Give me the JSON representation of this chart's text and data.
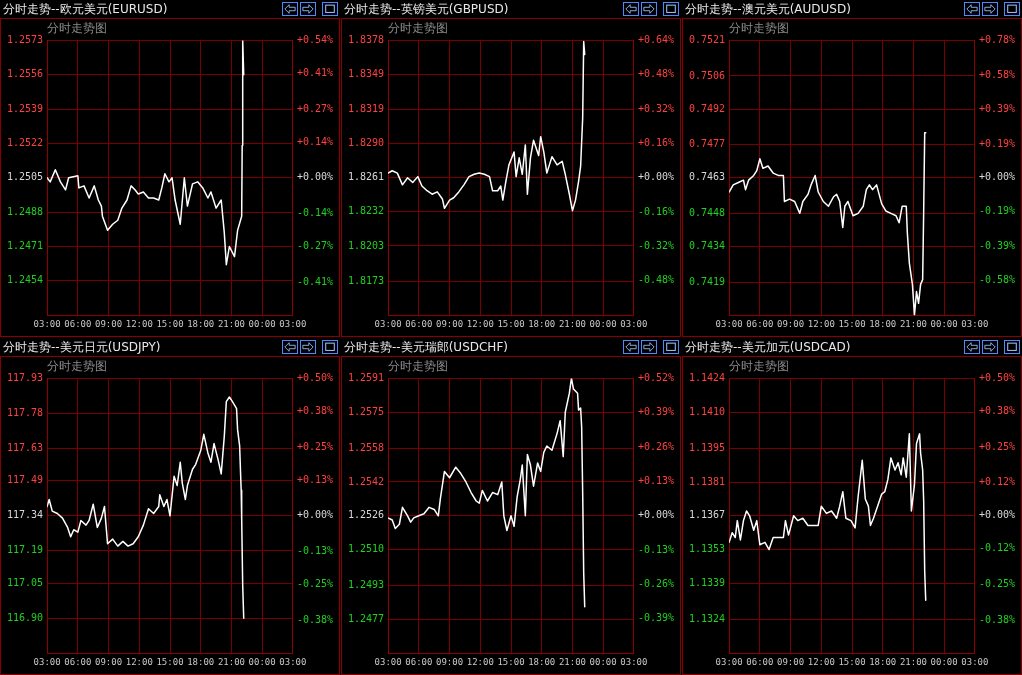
{
  "chart_data": [
    {
      "type": "line",
      "title": "分时走势--欧元美元(EURUSD)",
      "subtitle": "分时走势图",
      "color": "#ffffff",
      "grid": true,
      "x": [
        "--01-01T03:00",
        "--01-01T03:18",
        "--01-01T03:48",
        "--01-01T04:18",
        "--01-01T04:48",
        "--01-01T05:06",
        "--01-01T06:00",
        "--01-01T06:06",
        "--01-01T06:36",
        "--01-01T07:06",
        "--01-01T07:36",
        "--01-01T08:00",
        "--01-01T08:18",
        "--01-01T08:24",
        "--01-01T08:54",
        "--01-01T09:24",
        "--01-01T09:54",
        "--01-01T10:18",
        "--01-01T10:48",
        "--01-01T11:12",
        "--01-01T11:36",
        "--01-01T11:54",
        "--01-01T12:24",
        "--01-01T12:54",
        "--01-01T13:24",
        "--01-01T13:54",
        "--01-01T14:12",
        "--01-01T14:30",
        "--01-01T14:54",
        "--01-01T15:12",
        "--01-01T15:30",
        "--01-01T16:00",
        "--01-01T16:24",
        "--01-01T16:42",
        "--01-01T17:12",
        "--01-01T17:42",
        "--01-01T18:12",
        "--01-01T18:42",
        "--01-01T19:00",
        "--01-01T19:30",
        "--01-01T20:00",
        "--01-01T20:18",
        "--01-01T20:30",
        "--01-01T20:48",
        "--01-01T21:18",
        "--01-01T21:36",
        "--01-01T22:00",
        "--01-01T22:03",
        "--01-01T22:06",
        "--01-01T22:12"
      ],
      "values": [
        1.2505,
        1.2503,
        1.2509,
        1.2503,
        1.2499,
        1.2505,
        1.2506,
        1.25,
        1.2501,
        1.2495,
        1.2501,
        1.2494,
        1.2491,
        1.2486,
        1.2479,
        1.2482,
        1.2484,
        1.249,
        1.2494,
        1.2501,
        1.2499,
        1.2497,
        1.2498,
        1.2495,
        1.2495,
        1.2494,
        1.25,
        1.2507,
        1.2503,
        1.2505,
        1.2494,
        1.2482,
        1.2505,
        1.2491,
        1.2502,
        1.2503,
        1.25,
        1.2495,
        1.2498,
        1.249,
        1.2494,
        1.2478,
        1.2462,
        1.2471,
        1.2466,
        1.2479,
        1.2486,
        1.2521,
        1.2573,
        1.2556
      ],
      "xlim": [
        "--01-01T03:00",
        "--01-02T03:00"
      ],
      "xticks": [
        {
          "value": "--01-01T03:00",
          "label": "03:00"
        },
        {
          "value": "--01-01T06:00",
          "label": "06:00"
        },
        {
          "value": "--01-01T09:00",
          "label": "09:00"
        },
        {
          "value": "--01-01T12:00",
          "label": "12:00"
        },
        {
          "value": "--01-01T15:00",
          "label": "15:00"
        },
        {
          "value": "--01-01T18:00",
          "label": "18:00"
        },
        {
          "value": "--01-01T21:00",
          "label": "21:00"
        },
        {
          "value": "--01-02T00:00",
          "label": "00:00"
        },
        {
          "value": "--01-02T03:00",
          "label": "03:00"
        }
      ],
      "ylim": [
        1.2437,
        1.2573
      ],
      "yticks": [
        1.2573,
        1.2556,
        1.2539,
        1.2522,
        1.2505,
        1.2488,
        1.2471,
        1.2454
      ],
      "y2lim": [
        -0.54,
        0.54
      ],
      "y2ticks": [
        {
          "value": 0.54,
          "label": "+0.54%"
        },
        {
          "value": 0.41,
          "label": "+0.41%"
        },
        {
          "value": 0.27,
          "label": "+0.27%"
        },
        {
          "value": 0.14,
          "label": "+0.14%"
        },
        {
          "value": 0,
          "label": "+0.00%"
        },
        {
          "value": -0.14,
          "label": "-0.14%"
        },
        {
          "value": -0.27,
          "label": "-0.27%"
        },
        {
          "value": -0.41,
          "label": "-0.41%"
        }
      ]
    },
    {
      "type": "line",
      "title": "分时走势--英镑美元(GBPUSD)",
      "subtitle": "分时走势图",
      "color": "#ffffff",
      "grid": true,
      "x": [
        "--01-01T03:00",
        "--01-01T03:24",
        "--01-01T03:54",
        "--01-01T04:24",
        "--01-01T04:54",
        "--01-01T05:24",
        "--01-01T05:54",
        "--01-01T06:18",
        "--01-01T06:48",
        "--01-01T07:18",
        "--01-01T07:48",
        "--01-01T08:18",
        "--01-01T08:30",
        "--01-01T09:00",
        "--01-01T09:24",
        "--01-01T09:54",
        "--01-01T10:24",
        "--01-01T10:54",
        "--01-01T11:24",
        "--01-01T11:54",
        "--01-01T12:24",
        "--01-01T12:54",
        "--01-01T13:12",
        "--01-01T13:42",
        "--01-01T14:00",
        "--01-01T14:12",
        "--01-01T14:30",
        "--01-01T14:48",
        "--01-01T15:18",
        "--01-01T15:30",
        "--01-01T15:48",
        "--01-01T16:06",
        "--01-01T16:24",
        "--01-01T16:36",
        "--01-01T16:54",
        "--01-01T17:12",
        "--01-01T17:42",
        "--01-01T17:54",
        "--01-01T18:12",
        "--01-01T18:30",
        "--01-01T19:00",
        "--01-01T19:30",
        "--01-01T20:00",
        "--01-01T20:18",
        "--01-01T20:42",
        "--01-01T21:00",
        "--01-01T21:18",
        "--01-01T21:36",
        "--01-01T21:48",
        "--01-01T22:00",
        "--01-01T22:06",
        "--01-01T22:12"
      ],
      "values": [
        1.8265,
        1.8267,
        1.8265,
        1.8255,
        1.8261,
        1.8257,
        1.8262,
        1.8254,
        1.825,
        1.8247,
        1.8249,
        1.8243,
        1.8235,
        1.8242,
        1.8244,
        1.8249,
        1.8255,
        1.8262,
        1.8264,
        1.8265,
        1.8264,
        1.8262,
        1.825,
        1.825,
        1.8254,
        1.8242,
        1.8258,
        1.8272,
        1.8283,
        1.8262,
        1.8278,
        1.8264,
        1.8289,
        1.8247,
        1.8278,
        1.8293,
        1.828,
        1.8296,
        1.8283,
        1.8265,
        1.8279,
        1.8272,
        1.8275,
        1.8264,
        1.8247,
        1.8233,
        1.8242,
        1.8258,
        1.8271,
        1.8312,
        1.8377,
        1.8366
      ],
      "xlim": [
        "--01-01T03:00",
        "--01-02T03:00"
      ],
      "xticks": [
        {
          "value": "--01-01T03:00",
          "label": "03:00"
        },
        {
          "value": "--01-01T06:00",
          "label": "06:00"
        },
        {
          "value": "--01-01T09:00",
          "label": "09:00"
        },
        {
          "value": "--01-01T12:00",
          "label": "12:00"
        },
        {
          "value": "--01-01T15:00",
          "label": "15:00"
        },
        {
          "value": "--01-01T18:00",
          "label": "18:00"
        },
        {
          "value": "--01-01T21:00",
          "label": "21:00"
        },
        {
          "value": "--01-02T00:00",
          "label": "00:00"
        },
        {
          "value": "--01-02T03:00",
          "label": "03:00"
        }
      ],
      "ylim": [
        1.8144,
        1.8378
      ],
      "yticks": [
        1.8378,
        1.8349,
        1.8319,
        {
          "value": 1.829,
          "label": "1.8290"
        },
        1.8261,
        1.8232,
        1.8203,
        1.8173
      ],
      "y2lim": [
        -0.64,
        0.64
      ],
      "y2ticks": [
        {
          "value": 0.64,
          "label": "+0.64%"
        },
        {
          "value": 0.48,
          "label": "+0.48%"
        },
        {
          "value": 0.32,
          "label": "+0.32%"
        },
        {
          "value": 0.16,
          "label": "+0.16%"
        },
        {
          "value": 0,
          "label": "+0.00%"
        },
        {
          "value": -0.16,
          "label": "-0.16%"
        },
        {
          "value": -0.32,
          "label": "-0.32%"
        },
        {
          "value": -0.48,
          "label": "-0.48%"
        }
      ]
    },
    {
      "type": "line",
      "title": "分时走势--澳元美元(AUDUSD)",
      "subtitle": "分时走势图",
      "color": "#ffffff",
      "grid": true,
      "x": [
        "--01-01T03:00",
        "--01-01T03:24",
        "--01-01T03:54",
        "--01-01T04:24",
        "--01-01T04:36",
        "--01-01T04:54",
        "--01-01T05:24",
        "--01-01T05:42",
        "--01-01T06:00",
        "--01-01T06:18",
        "--01-01T06:48",
        "--01-01T07:18",
        "--01-01T07:48",
        "--01-01T08:18",
        "--01-01T08:24",
        "--01-01T08:54",
        "--01-01T09:24",
        "--01-01T09:54",
        "--01-01T10:12",
        "--01-01T10:42",
        "--01-01T11:00",
        "--01-01T11:24",
        "--01-01T11:42",
        "--01-01T12:12",
        "--01-01T12:42",
        "--01-01T13:12",
        "--01-01T13:30",
        "--01-01T13:48",
        "--01-01T14:06",
        "--01-01T14:18",
        "--01-01T14:36",
        "--01-01T15:06",
        "--01-01T15:36",
        "--01-01T16:06",
        "--01-01T16:24",
        "--01-01T16:42",
        "--01-01T17:00",
        "--01-01T17:24",
        "--01-01T17:54",
        "--01-01T18:18",
        "--01-01T18:48",
        "--01-01T19:18",
        "--01-01T19:36",
        "--01-01T19:54",
        "--01-01T20:18",
        "--01-01T20:24",
        "--01-01T20:36",
        "--01-01T20:54",
        "--01-01T21:06",
        "--01-01T21:18",
        "--01-01T21:30",
        "--01-01T21:42",
        "--01-01T21:54",
        "--01-01T22:00",
        "--01-01T22:06",
        "--01-01T22:12"
      ],
      "values": [
        0.7457,
        0.746,
        0.7461,
        0.7462,
        0.7458,
        0.7462,
        0.7464,
        0.7466,
        0.7471,
        0.7467,
        0.7468,
        0.7465,
        0.7464,
        0.7464,
        0.7453,
        0.7454,
        0.7453,
        0.7448,
        0.7453,
        0.7456,
        0.746,
        0.7464,
        0.7457,
        0.7453,
        0.7451,
        0.7455,
        0.7456,
        0.7453,
        0.7442,
        0.7451,
        0.7453,
        0.7447,
        0.7448,
        0.7451,
        0.7458,
        0.746,
        0.7458,
        0.746,
        0.7452,
        0.7449,
        0.7448,
        0.7447,
        0.7444,
        0.7451,
        0.7451,
        0.744,
        0.7427,
        0.7418,
        0.7405,
        0.7415,
        0.741,
        0.7418,
        0.742,
        0.7449,
        0.7482,
        0.7482
      ],
      "xlim": [
        "--01-01T03:00",
        "--01-02T03:00"
      ],
      "xticks": [
        {
          "value": "--01-01T03:00",
          "label": "03:00"
        },
        {
          "value": "--01-01T06:00",
          "label": "06:00"
        },
        {
          "value": "--01-01T09:00",
          "label": "09:00"
        },
        {
          "value": "--01-01T12:00",
          "label": "12:00"
        },
        {
          "value": "--01-01T15:00",
          "label": "15:00"
        },
        {
          "value": "--01-01T18:00",
          "label": "18:00"
        },
        {
          "value": "--01-01T21:00",
          "label": "21:00"
        },
        {
          "value": "--01-02T00:00",
          "label": "00:00"
        },
        {
          "value": "--01-02T03:00",
          "label": "03:00"
        }
      ],
      "ylim": [
        0.7405,
        0.7521
      ],
      "yticks": [
        0.7521,
        0.7506,
        0.7492,
        0.7477,
        0.7463,
        0.7448,
        0.7434,
        0.7419
      ],
      "y2lim": [
        -0.78,
        0.78
      ],
      "y2ticks": [
        {
          "value": 0.78,
          "label": "+0.78%"
        },
        {
          "value": 0.58,
          "label": "+0.58%"
        },
        {
          "value": 0.39,
          "label": "+0.39%"
        },
        {
          "value": 0.19,
          "label": "+0.19%"
        },
        {
          "value": 0,
          "label": "+0.00%"
        },
        {
          "value": -0.19,
          "label": "-0.19%"
        },
        {
          "value": -0.39,
          "label": "-0.39%"
        },
        {
          "value": -0.58,
          "label": "-0.58%"
        }
      ]
    },
    {
      "type": "line",
      "title": "分时走势--美元日元(USDJPY)",
      "subtitle": "分时走势图",
      "color": "#ffffff",
      "grid": true,
      "x": [
        "--01-01T03:00",
        "--01-01T03:12",
        "--01-01T03:30",
        "--01-01T04:00",
        "--01-01T04:30",
        "--01-01T05:00",
        "--01-01T05:18",
        "--01-01T05:36",
        "--01-01T06:00",
        "--01-01T06:18",
        "--01-01T06:48",
        "--01-01T07:06",
        "--01-01T07:30",
        "--01-01T07:54",
        "--01-01T08:18",
        "--01-01T08:36",
        "--01-01T08:54",
        "--01-01T09:24",
        "--01-01T09:54",
        "--01-01T10:24",
        "--01-01T10:54",
        "--01-01T11:24",
        "--01-01T11:54",
        "--01-01T12:24",
        "--01-01T12:54",
        "--01-01T13:24",
        "--01-01T13:54",
        "--01-01T14:00",
        "--01-01T14:24",
        "--01-01T14:42",
        "--01-01T15:00",
        "--01-01T15:24",
        "--01-01T15:42",
        "--01-01T16:00",
        "--01-01T16:12",
        "--01-01T16:30",
        "--01-01T16:42",
        "--01-01T17:12",
        "--01-01T17:30",
        "--01-01T18:00",
        "--01-01T18:18",
        "--01-01T18:42",
        "--01-01T19:00",
        "--01-01T19:18",
        "--01-01T19:42",
        "--01-01T20:00",
        "--01-01T20:18",
        "--01-01T20:30",
        "--01-01T20:48",
        "--01-01T21:06",
        "--01-01T21:30",
        "--01-01T21:36",
        "--01-01T21:48",
        "--01-01T21:57",
        "--01-01T22:00",
        "--01-01T22:06",
        "--01-01T22:12"
      ],
      "values": [
        117.38,
        117.41,
        117.36,
        117.35,
        117.33,
        117.29,
        117.25,
        117.28,
        117.27,
        117.32,
        117.3,
        117.32,
        117.39,
        117.29,
        117.33,
        117.38,
        117.22,
        117.24,
        117.21,
        117.23,
        117.21,
        117.22,
        117.25,
        117.3,
        117.37,
        117.35,
        117.38,
        117.43,
        117.38,
        117.41,
        117.34,
        117.51,
        117.47,
        117.57,
        117.48,
        117.41,
        117.47,
        117.54,
        117.56,
        117.62,
        117.69,
        117.61,
        117.57,
        117.65,
        117.58,
        117.52,
        117.68,
        117.83,
        117.85,
        117.83,
        117.8,
        117.71,
        117.64,
        117.45,
        117.33,
        117.04,
        116.9
      ],
      "xlim": [
        "--01-01T03:00",
        "--01-02T03:00"
      ],
      "xticks": [
        {
          "value": "--01-01T03:00",
          "label": "03:00"
        },
        {
          "value": "--01-01T06:00",
          "label": "06:00"
        },
        {
          "value": "--01-01T09:00",
          "label": "09:00"
        },
        {
          "value": "--01-01T12:00",
          "label": "12:00"
        },
        {
          "value": "--01-01T15:00",
          "label": "15:00"
        },
        {
          "value": "--01-01T18:00",
          "label": "18:00"
        },
        {
          "value": "--01-01T21:00",
          "label": "21:00"
        },
        {
          "value": "--01-02T00:00",
          "label": "00:00"
        },
        {
          "value": "--01-02T03:00",
          "label": "03:00"
        }
      ],
      "ylim": [
        116.75,
        117.93
      ],
      "yticks": [
        117.93,
        117.78,
        117.63,
        117.49,
        117.34,
        117.19,
        117.05,
        {
          "value": 116.9,
          "label": "116.90"
        }
      ],
      "y2lim": [
        -0.5,
        0.5
      ],
      "y2ticks": [
        {
          "value": 0.5,
          "label": "+0.50%"
        },
        {
          "value": 0.38,
          "label": "+0.38%"
        },
        {
          "value": 0.25,
          "label": "+0.25%"
        },
        {
          "value": 0.13,
          "label": "+0.13%"
        },
        {
          "value": 0,
          "label": "+0.00%"
        },
        {
          "value": -0.13,
          "label": "-0.13%"
        },
        {
          "value": -0.25,
          "label": "-0.25%"
        },
        {
          "value": -0.38,
          "label": "-0.38%"
        }
      ]
    },
    {
      "type": "line",
      "title": "分时走势--美元瑞郎(USDCHF)",
      "subtitle": "分时走势图",
      "color": "#ffffff",
      "grid": true,
      "x": [
        "--01-01T03:00",
        "--01-01T03:24",
        "--01-01T03:42",
        "--01-01T04:06",
        "--01-01T04:24",
        "--01-01T04:54",
        "--01-01T05:12",
        "--01-01T05:30",
        "--01-01T06:00",
        "--01-01T06:30",
        "--01-01T07:00",
        "--01-01T07:30",
        "--01-01T07:54",
        "--01-01T08:06",
        "--01-01T08:30",
        "--01-01T09:00",
        "--01-01T09:36",
        "--01-01T10:06",
        "--01-01T10:36",
        "--01-01T11:06",
        "--01-01T11:36",
        "--01-01T11:54",
        "--01-01T12:12",
        "--01-01T12:42",
        "--01-01T13:12",
        "--01-01T13:42",
        "--01-01T14:06",
        "--01-01T14:18",
        "--01-01T14:36",
        "--01-01T15:00",
        "--01-01T15:18",
        "--01-01T15:36",
        "--01-01T15:54",
        "--01-01T16:06",
        "--01-01T16:24",
        "--01-01T16:36",
        "--01-01T16:54",
        "--01-01T17:12",
        "--01-01T17:36",
        "--01-01T17:54",
        "--01-01T18:12",
        "--01-01T18:30",
        "--01-01T19:00",
        "--01-01T19:30",
        "--01-01T19:48",
        "--01-01T20:06",
        "--01-01T20:18",
        "--01-01T20:42",
        "--01-01T20:54",
        "--01-01T21:06",
        "--01-01T21:30",
        "--01-01T21:36",
        "--01-01T21:48",
        "--01-01T21:54",
        "--01-01T22:00",
        "--01-01T22:06",
        "--01-01T22:12"
      ],
      "values": [
        1.2525,
        1.2524,
        1.252,
        1.2522,
        1.253,
        1.2526,
        1.2523,
        1.2525,
        1.2526,
        1.2527,
        1.253,
        1.2529,
        1.2526,
        1.2534,
        1.2547,
        1.2544,
        1.2549,
        1.2546,
        1.2542,
        1.2537,
        1.2533,
        1.2532,
        1.2538,
        1.2533,
        1.2537,
        1.2536,
        1.2542,
        1.2526,
        1.2519,
        1.2526,
        1.2521,
        1.2535,
        1.2543,
        1.255,
        1.2526,
        1.2555,
        1.255,
        1.254,
        1.2551,
        1.2547,
        1.2556,
        1.2559,
        1.2557,
        1.2565,
        1.2571,
        1.2554,
        1.2575,
        1.2584,
        1.2591,
        1.2586,
        1.2584,
        1.2576,
        1.2577,
        1.2568,
        1.2537,
        1.2499,
        1.2483
      ],
      "xlim": [
        "--01-01T03:00",
        "--01-02T03:00"
      ],
      "xticks": [
        {
          "value": "--01-01T03:00",
          "label": "03:00"
        },
        {
          "value": "--01-01T06:00",
          "label": "06:00"
        },
        {
          "value": "--01-01T09:00",
          "label": "09:00"
        },
        {
          "value": "--01-01T12:00",
          "label": "12:00"
        },
        {
          "value": "--01-01T15:00",
          "label": "15:00"
        },
        {
          "value": "--01-01T18:00",
          "label": "18:00"
        },
        {
          "value": "--01-01T21:00",
          "label": "21:00"
        },
        {
          "value": "--01-02T00:00",
          "label": "00:00"
        },
        {
          "value": "--01-02T03:00",
          "label": "03:00"
        }
      ],
      "ylim": [
        1.2461,
        1.2591
      ],
      "yticks": [
        1.2591,
        1.2575,
        1.2558,
        1.2542,
        1.2526,
        {
          "value": 1.251,
          "label": "1.2510"
        },
        1.2493,
        1.2477
      ],
      "y2lim": [
        -0.52,
        0.52
      ],
      "y2ticks": [
        {
          "value": 0.52,
          "label": "+0.52%"
        },
        {
          "value": 0.39,
          "label": "+0.39%"
        },
        {
          "value": 0.26,
          "label": "+0.26%"
        },
        {
          "value": 0.13,
          "label": "+0.13%"
        },
        {
          "value": 0,
          "label": "+0.00%"
        },
        {
          "value": -0.13,
          "label": "-0.13%"
        },
        {
          "value": -0.26,
          "label": "-0.26%"
        },
        {
          "value": -0.39,
          "label": "-0.39%"
        }
      ]
    },
    {
      "type": "line",
      "title": "分时走势--美元加元(USDCAD)",
      "subtitle": "分时走势图",
      "color": "#ffffff",
      "grid": true,
      "x": [
        "--01-01T03:00",
        "--01-01T03:18",
        "--01-01T03:36",
        "--01-01T03:48",
        "--01-01T04:06",
        "--01-01T04:24",
        "--01-01T04:42",
        "--01-01T05:00",
        "--01-01T05:24",
        "--01-01T05:42",
        "--01-01T06:00",
        "--01-01T06:30",
        "--01-01T06:54",
        "--01-01T07:18",
        "--01-01T07:48",
        "--01-01T08:18",
        "--01-01T08:30",
        "--01-01T08:48",
        "--01-01T09:18",
        "--01-01T09:42",
        "--01-01T10:12",
        "--01-01T10:42",
        "--01-01T11:12",
        "--01-01T11:42",
        "--01-01T12:00",
        "--01-01T12:30",
        "--01-01T13:00",
        "--01-01T13:30",
        "--01-01T13:48",
        "--01-01T14:06",
        "--01-01T14:24",
        "--01-01T14:54",
        "--01-01T15:18",
        "--01-01T15:36",
        "--01-01T16:00",
        "--01-01T16:18",
        "--01-01T16:36",
        "--01-01T16:48",
        "--01-01T17:06",
        "--01-01T17:30",
        "--01-01T17:54",
        "--01-01T18:12",
        "--01-01T18:30",
        "--01-01T18:48",
        "--01-01T19:12",
        "--01-01T19:30",
        "--01-01T19:48",
        "--01-01T20:00",
        "--01-01T20:18",
        "--01-01T20:36",
        "--01-01T20:48",
        "--01-01T21:06",
        "--01-01T21:18",
        "--01-01T21:36",
        "--01-01T21:42",
        "--01-01T21:54",
        "--01-01T22:00",
        "--01-01T22:06",
        "--01-01T22:12"
      ],
      "values": [
        1.1356,
        1.136,
        1.1358,
        1.1365,
        1.1357,
        1.1365,
        1.1369,
        1.1367,
        1.1361,
        1.1365,
        1.1355,
        1.1356,
        1.1353,
        1.1358,
        1.1358,
        1.1358,
        1.1365,
        1.1359,
        1.1367,
        1.1365,
        1.1366,
        1.1363,
        1.1363,
        1.1363,
        1.1371,
        1.1368,
        1.1369,
        1.1366,
        1.1371,
        1.1377,
        1.1366,
        1.1365,
        1.1362,
        1.1375,
        1.139,
        1.1374,
        1.1371,
        1.1363,
        1.1366,
        1.1371,
        1.1376,
        1.1377,
        1.1382,
        1.1391,
        1.1386,
        1.1389,
        1.1384,
        1.1391,
        1.1383,
        1.1401,
        1.1369,
        1.138,
        1.1397,
        1.1401,
        1.1393,
        1.1386,
        1.1373,
        1.1344,
        1.1332
      ],
      "xlim": [
        "--01-01T03:00",
        "--01-02T03:00"
      ],
      "xticks": [
        {
          "value": "--01-01T03:00",
          "label": "03:00"
        },
        {
          "value": "--01-01T06:00",
          "label": "06:00"
        },
        {
          "value": "--01-01T09:00",
          "label": "09:00"
        },
        {
          "value": "--01-01T12:00",
          "label": "12:00"
        },
        {
          "value": "--01-01T15:00",
          "label": "15:00"
        },
        {
          "value": "--01-01T18:00",
          "label": "18:00"
        },
        {
          "value": "--01-01T21:00",
          "label": "21:00"
        },
        {
          "value": "--01-02T00:00",
          "label": "00:00"
        },
        {
          "value": "--01-02T03:00",
          "label": "03:00"
        }
      ],
      "ylim": [
        1.131,
        1.1424
      ],
      "yticks": [
        1.1424,
        {
          "value": 1.141,
          "label": "1.1410"
        },
        1.1395,
        1.1381,
        1.1367,
        1.1353,
        1.1339,
        1.1324
      ],
      "y2lim": [
        -0.5,
        0.5
      ],
      "y2ticks": [
        {
          "value": 0.5,
          "label": "+0.50%"
        },
        {
          "value": 0.38,
          "label": "+0.38%"
        },
        {
          "value": 0.25,
          "label": "+0.25%"
        },
        {
          "value": 0.12,
          "label": "+0.12%"
        },
        {
          "value": 0,
          "label": "+0.00%"
        },
        {
          "value": -0.12,
          "label": "-0.12%"
        },
        {
          "value": -0.25,
          "label": "-0.25%"
        },
        {
          "value": -0.38,
          "label": "-0.38%"
        }
      ]
    }
  ]
}
